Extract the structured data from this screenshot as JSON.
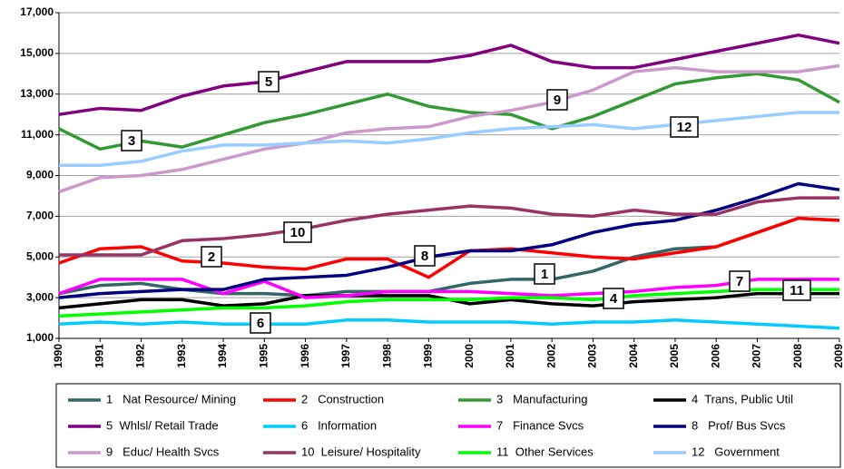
{
  "chart_data": {
    "type": "line",
    "categories": [
      "1990",
      "1991",
      "1992",
      "1993",
      "1994",
      "1995",
      "1996",
      "1997",
      "1998",
      "1999",
      "2000",
      "2001",
      "2002",
      "2003",
      "2004",
      "2005",
      "2006",
      "2007",
      "2008",
      "2009"
    ],
    "ylim": [
      1000,
      17000
    ],
    "yticks": [
      {
        "value": 1000,
        "label": "1,000"
      },
      {
        "value": 3000,
        "label": "3,000"
      },
      {
        "value": 5000,
        "label": "5,000"
      },
      {
        "value": 7000,
        "label": "7,000"
      },
      {
        "value": 9000,
        "label": "9,000"
      },
      {
        "value": 11000,
        "label": "11,000"
      },
      {
        "value": 13000,
        "label": "13,000"
      },
      {
        "value": 15000,
        "label": "15,000"
      },
      {
        "value": 17000,
        "label": "17,000"
      }
    ],
    "grid": true,
    "legend": "bottom",
    "series": [
      {
        "name": "1   Nat Resource/ Mining",
        "color": "#336666",
        "values": [
          3200,
          3600,
          3700,
          3400,
          3200,
          3200,
          3100,
          3300,
          3300,
          3300,
          3700,
          3900,
          3900,
          4300,
          5000,
          5400,
          5500,
          6200,
          6900,
          6800
        ]
      },
      {
        "name": "2   Construction",
        "color": "#ff0000",
        "values": [
          4700,
          5400,
          5500,
          4800,
          4700,
          4500,
          4400,
          4900,
          4900,
          4000,
          5300,
          5400,
          5200,
          5000,
          4900,
          5200,
          5500,
          6200,
          6900,
          6800
        ]
      },
      {
        "name": "3   Manufacturing",
        "color": "#339933",
        "values": [
          11300,
          10300,
          10700,
          10400,
          11000,
          11600,
          12000,
          12500,
          13000,
          12400,
          12100,
          12000,
          11300,
          11900,
          12700,
          13500,
          13800,
          14000,
          13700,
          12600
        ]
      },
      {
        "name": "4  Trans, Public Util",
        "color": "#000000",
        "values": [
          2500,
          2700,
          2900,
          2900,
          2600,
          2700,
          3100,
          3100,
          3100,
          3100,
          2700,
          2900,
          2700,
          2600,
          2800,
          2900,
          3000,
          3200,
          3200,
          3200
        ]
      },
      {
        "name": "5  Whlsl/ Retail Trade",
        "color": "#800080",
        "values": [
          12000,
          12300,
          12200,
          12900,
          13400,
          13600,
          14100,
          14600,
          14600,
          14600,
          14900,
          15400,
          14600,
          14300,
          14300,
          14700,
          15100,
          15500,
          15900,
          15500
        ]
      },
      {
        "name": "6   Information",
        "color": "#00ccff",
        "values": [
          1700,
          1800,
          1700,
          1800,
          1700,
          1700,
          1700,
          1900,
          1900,
          1800,
          1800,
          1800,
          1700,
          1800,
          1800,
          1900,
          1800,
          1700,
          1600,
          1500
        ]
      },
      {
        "name": "7   Finance Svcs",
        "color": "#ff00ff",
        "values": [
          3200,
          3900,
          3900,
          3900,
          3200,
          3800,
          3000,
          3100,
          3300,
          3300,
          3300,
          3200,
          3100,
          3200,
          3300,
          3500,
          3600,
          3900,
          3900,
          3900
        ]
      },
      {
        "name": "8   Prof/ Bus Svcs",
        "color": "#000080",
        "values": [
          3000,
          3200,
          3300,
          3400,
          3400,
          3900,
          4000,
          4100,
          4500,
          5000,
          5300,
          5300,
          5600,
          6200,
          6600,
          6800,
          7300,
          7900,
          8600,
          8300
        ]
      },
      {
        "name": "9   Educ/ Health Svcs",
        "color": "#cc99cc",
        "values": [
          8200,
          8900,
          9000,
          9300,
          9800,
          10300,
          10600,
          11100,
          11300,
          11400,
          11900,
          12200,
          12600,
          13200,
          14100,
          14300,
          14100,
          14100,
          14100,
          14400
        ]
      },
      {
        "name": "10  Leisure/ Hospitality",
        "color": "#993366",
        "values": [
          5100,
          5100,
          5100,
          5800,
          5900,
          6100,
          6400,
          6800,
          7100,
          7300,
          7500,
          7400,
          7100,
          7000,
          7300,
          7100,
          7100,
          7700,
          7900,
          7900
        ]
      },
      {
        "name": "11  Other Services",
        "color": "#00ff00",
        "values": [
          2100,
          2200,
          2300,
          2400,
          2500,
          2500,
          2600,
          2800,
          2900,
          2900,
          2900,
          3000,
          3000,
          2900,
          3100,
          3200,
          3300,
          3400,
          3400,
          3400
        ]
      },
      {
        "name": "12   Government",
        "color": "#99ccff",
        "values": [
          9500,
          9500,
          9700,
          10200,
          10500,
          10500,
          10600,
          10700,
          10600,
          10800,
          11100,
          11300,
          11400,
          11500,
          11300,
          11500,
          11700,
          11900,
          12100,
          12100
        ]
      }
    ],
    "annotations": [
      "5",
      "3",
      "9",
      "12",
      "10",
      "2",
      "8",
      "1",
      "4",
      "7",
      "11",
      "6"
    ]
  }
}
